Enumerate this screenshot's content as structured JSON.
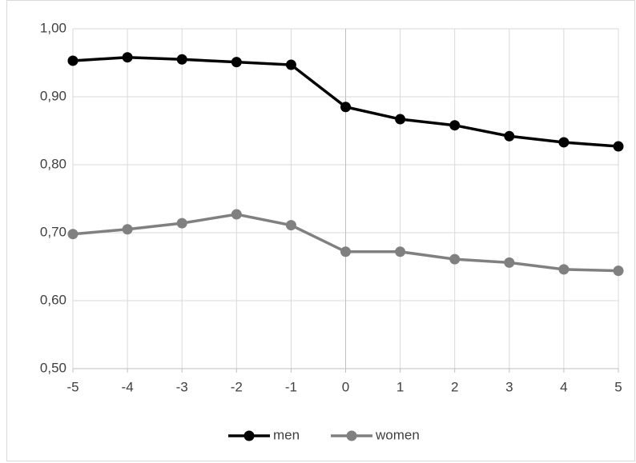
{
  "chart_data": {
    "type": "line",
    "x": [
      -5,
      -4,
      -3,
      -2,
      -1,
      0,
      1,
      2,
      3,
      4,
      5
    ],
    "xlim": [
      -5,
      5
    ],
    "xticks": [
      -5,
      -4,
      -3,
      -2,
      -1,
      0,
      1,
      2,
      3,
      4,
      5
    ],
    "ylim": [
      0.5,
      1.0
    ],
    "yticks": [
      {
        "value": 0.5,
        "label": "0,50"
      },
      {
        "value": 0.6,
        "label": "0,60"
      },
      {
        "value": 0.7,
        "label": "0,70"
      },
      {
        "value": 0.8,
        "label": "0,80"
      },
      {
        "value": 0.9,
        "label": "0,90"
      },
      {
        "value": 1.0,
        "label": "1,00"
      }
    ],
    "grid": true,
    "legend": "bottom",
    "series": [
      {
        "name": "men",
        "color": "#000000",
        "values": [
          0.953,
          0.958,
          0.955,
          0.951,
          0.947,
          0.885,
          0.867,
          0.858,
          0.842,
          0.833,
          0.827
        ]
      },
      {
        "name": "women",
        "color": "#808080",
        "values": [
          0.698,
          0.705,
          0.714,
          0.727,
          0.711,
          0.672,
          0.672,
          0.661,
          0.656,
          0.646,
          0.644
        ]
      }
    ]
  }
}
